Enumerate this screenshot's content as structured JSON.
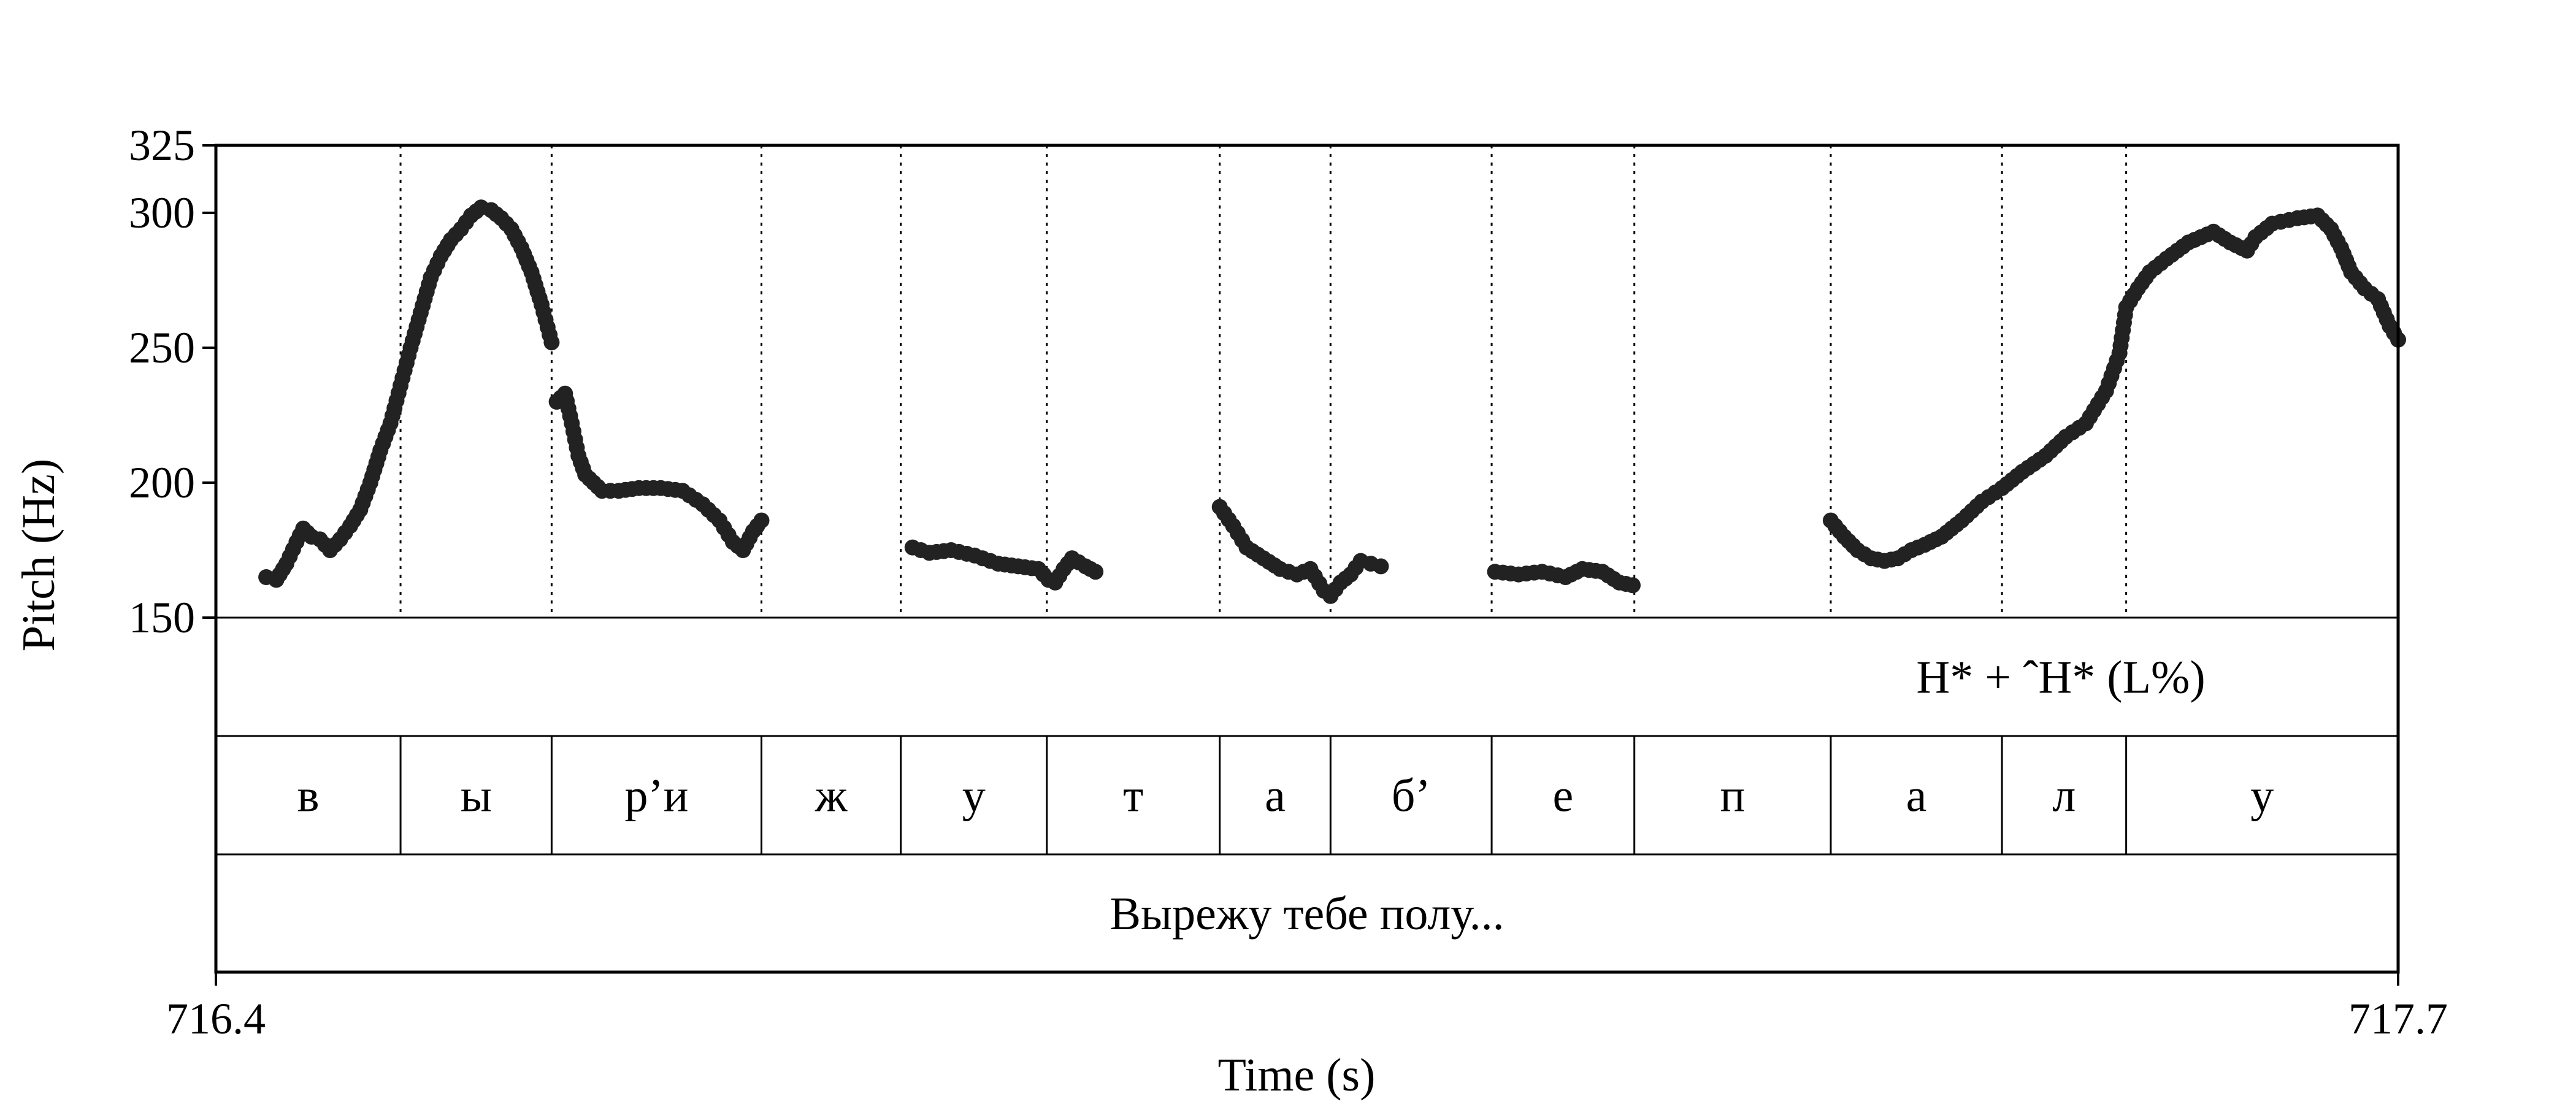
{
  "chart_data": {
    "type": "scatter",
    "ylabel": "Pitch (Hz)",
    "xlabel": "Time (s)",
    "xlim": [
      716.4,
      717.7
    ],
    "ylim": [
      150,
      325
    ],
    "y_ticks": [
      "150",
      "200",
      "250",
      "300",
      "325"
    ],
    "x_tick_labels": [
      "716.4",
      "717.7"
    ],
    "segment_boundaries": [
      716.51,
      716.6,
      716.725,
      716.808,
      716.895,
      716.998,
      717.064,
      717.16,
      717.245,
      717.362,
      717.464,
      717.538
    ],
    "tiers": [
      {
        "name": "tones",
        "intervals": [
          {
            "text": "H* + ˆH* (L%)",
            "start": 717.2,
            "end": 717.7
          }
        ]
      },
      {
        "name": "segments",
        "intervals": [
          {
            "text": "в",
            "start": 716.4,
            "end": 716.51
          },
          {
            "text": "ы",
            "start": 716.51,
            "end": 716.6
          },
          {
            "text": "р’и",
            "start": 716.6,
            "end": 716.725
          },
          {
            "text": "ж",
            "start": 716.725,
            "end": 716.808
          },
          {
            "text": "у",
            "start": 716.808,
            "end": 716.895
          },
          {
            "text": "т",
            "start": 716.895,
            "end": 716.998
          },
          {
            "text": "а",
            "start": 716.998,
            "end": 717.064
          },
          {
            "text": "б’",
            "start": 717.064,
            "end": 717.16
          },
          {
            "text": "е",
            "start": 717.16,
            "end": 717.245
          },
          {
            "text": "п",
            "start": 717.245,
            "end": 717.362
          },
          {
            "text": "а",
            "start": 717.362,
            "end": 717.464
          },
          {
            "text": "л",
            "start": 717.464,
            "end": 717.538
          },
          {
            "text": "у",
            "start": 717.538,
            "end": 717.7
          }
        ]
      },
      {
        "name": "words",
        "intervals": [
          {
            "text": "Вырежу тебе полу...",
            "start": 716.4,
            "end": 717.7
          }
        ]
      }
    ],
    "pitch_contours": [
      [
        [
          716.43,
          165
        ],
        [
          716.436,
          164
        ],
        [
          716.442,
          170
        ],
        [
          716.448,
          178
        ],
        [
          716.452,
          183
        ],
        [
          716.457,
          180
        ],
        [
          716.462,
          179
        ],
        [
          716.468,
          175
        ],
        [
          716.474,
          179
        ],
        [
          716.48,
          184
        ],
        [
          716.486,
          190
        ],
        [
          716.492,
          200
        ],
        [
          716.498,
          212
        ],
        [
          716.504,
          222
        ],
        [
          716.51,
          236
        ],
        [
          716.516,
          250
        ],
        [
          716.522,
          263
        ],
        [
          716.528,
          276
        ],
        [
          716.534,
          284
        ],
        [
          716.54,
          290
        ],
        [
          716.546,
          294
        ],
        [
          716.552,
          299
        ],
        [
          716.558,
          302
        ],
        [
          716.564,
          301
        ],
        [
          716.57,
          298
        ],
        [
          716.576,
          294
        ],
        [
          716.582,
          287
        ],
        [
          716.588,
          278
        ],
        [
          716.594,
          266
        ],
        [
          716.6,
          252
        ]
      ],
      [
        [
          716.603,
          230
        ],
        [
          716.608,
          233
        ],
        [
          716.612,
          222
        ],
        [
          716.616,
          210
        ],
        [
          716.62,
          203
        ],
        [
          716.625,
          200
        ],
        [
          716.63,
          197
        ],
        [
          716.64,
          197
        ],
        [
          716.652,
          198
        ],
        [
          716.665,
          198
        ],
        [
          716.678,
          197
        ],
        [
          716.69,
          192
        ],
        [
          716.7,
          186
        ],
        [
          716.708,
          178
        ],
        [
          716.714,
          175
        ],
        [
          716.72,
          182
        ],
        [
          716.725,
          186
        ]
      ],
      [
        [
          716.815,
          176
        ],
        [
          716.825,
          174
        ],
        [
          716.838,
          175
        ],
        [
          716.852,
          173
        ],
        [
          716.866,
          170
        ],
        [
          716.878,
          169
        ],
        [
          716.89,
          168
        ],
        [
          716.896,
          164
        ],
        [
          716.9,
          163
        ],
        [
          716.905,
          168
        ],
        [
          716.91,
          172
        ],
        [
          716.918,
          169
        ],
        [
          716.924,
          167
        ]
      ],
      [
        [
          716.998,
          191
        ],
        [
          717.006,
          184
        ],
        [
          717.014,
          176
        ],
        [
          717.024,
          172
        ],
        [
          717.034,
          168
        ],
        [
          717.044,
          166
        ],
        [
          717.052,
          168
        ],
        [
          717.06,
          160
        ],
        [
          717.064,
          158
        ],
        [
          717.07,
          163
        ],
        [
          717.076,
          166
        ],
        [
          717.082,
          171
        ],
        [
          717.088,
          170
        ],
        [
          717.094,
          169
        ]
      ],
      [
        [
          717.162,
          167
        ],
        [
          717.176,
          166
        ],
        [
          717.19,
          167
        ],
        [
          717.204,
          165
        ],
        [
          717.214,
          168
        ],
        [
          717.226,
          167
        ],
        [
          717.236,
          163
        ],
        [
          717.244,
          162
        ]
      ],
      [
        [
          717.362,
          186
        ],
        [
          717.37,
          180
        ],
        [
          717.378,
          175
        ],
        [
          717.386,
          172
        ],
        [
          717.394,
          171
        ],
        [
          717.402,
          172
        ],
        [
          717.41,
          175
        ],
        [
          717.418,
          177
        ],
        [
          717.428,
          180
        ],
        [
          717.44,
          186
        ],
        [
          717.452,
          193
        ],
        [
          717.464,
          198
        ],
        [
          717.476,
          204
        ],
        [
          717.49,
          210
        ],
        [
          717.502,
          217
        ],
        [
          717.514,
          222
        ],
        [
          717.526,
          234
        ],
        [
          717.534,
          248
        ],
        [
          717.538,
          265
        ],
        [
          717.545,
          272
        ],
        [
          717.552,
          278
        ],
        [
          717.562,
          283
        ],
        [
          717.575,
          289
        ],
        [
          717.59,
          293
        ],
        [
          717.6,
          289
        ],
        [
          717.61,
          286
        ],
        [
          717.615,
          291
        ],
        [
          717.625,
          296
        ],
        [
          717.64,
          298
        ],
        [
          717.652,
          299
        ],
        [
          717.66,
          294
        ],
        [
          717.666,
          287
        ],
        [
          717.672,
          278
        ],
        [
          717.68,
          272
        ],
        [
          717.688,
          268
        ],
        [
          717.695,
          258
        ],
        [
          717.7,
          253
        ]
      ]
    ]
  }
}
